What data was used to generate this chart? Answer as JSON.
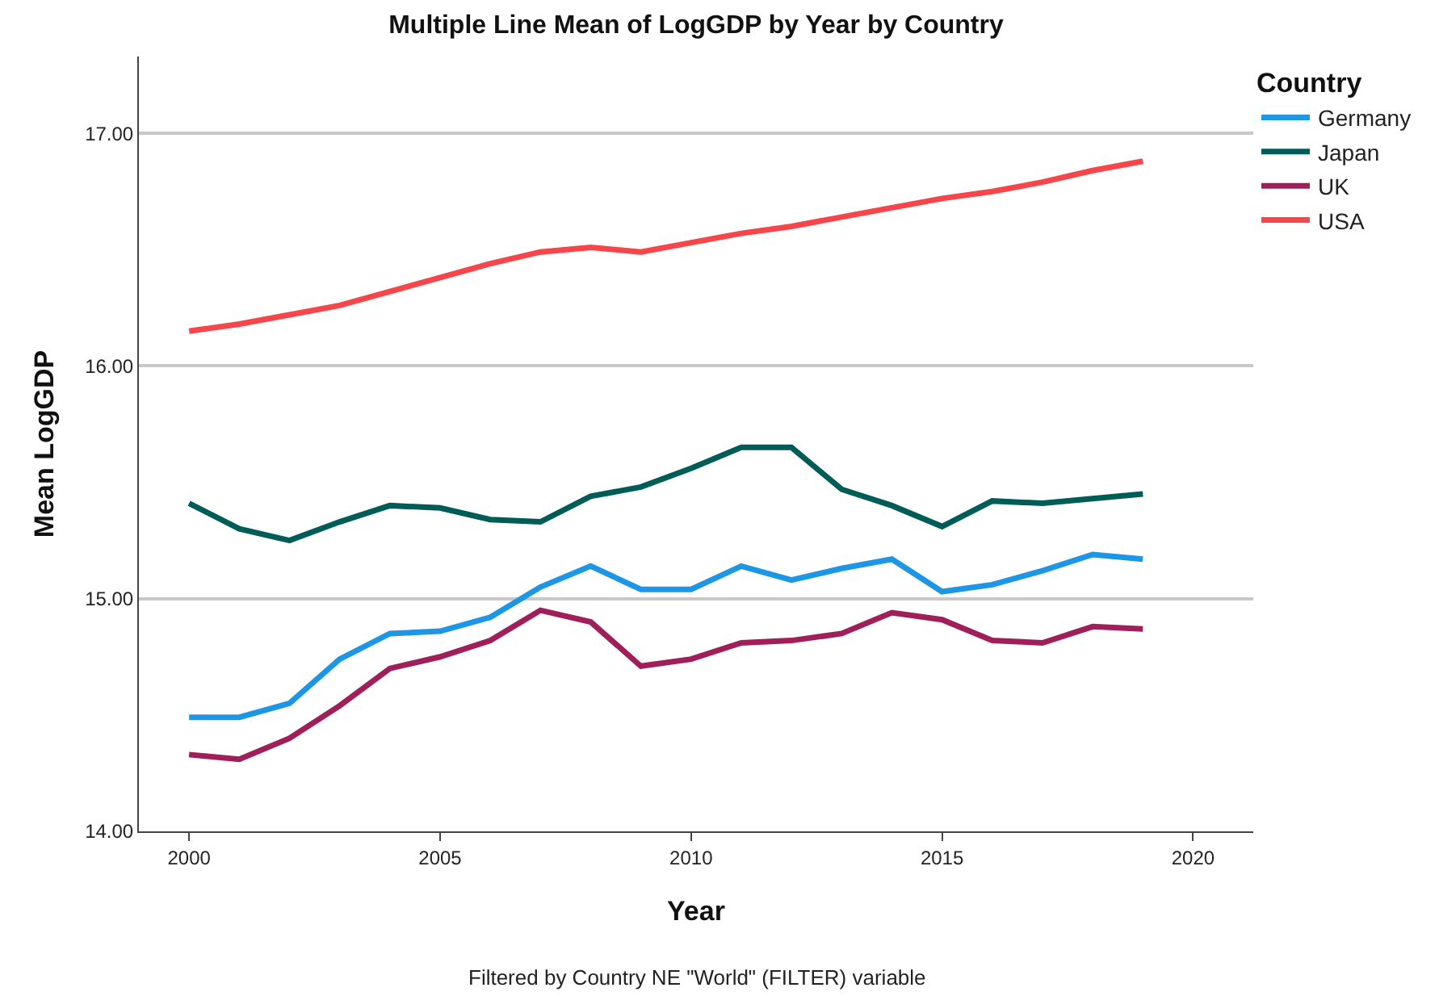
{
  "chart_data": {
    "type": "line",
    "title": "Multiple Line Mean of LogGDP by Year by Country",
    "xlabel": "Year",
    "ylabel": "Mean LogGDP",
    "legend_title": "Country",
    "annotations": [
      "Filtered by Country NE \"World\" (FILTER) variable"
    ],
    "x": [
      2000,
      2001,
      2002,
      2003,
      2004,
      2005,
      2006,
      2007,
      2008,
      2009,
      2010,
      2011,
      2012,
      2013,
      2014,
      2015,
      2016,
      2017,
      2018,
      2019
    ],
    "series": [
      {
        "name": "Germany",
        "color": "#1e96e6",
        "values": [
          14.49,
          14.49,
          14.55,
          14.74,
          14.85,
          14.86,
          14.92,
          15.05,
          15.14,
          15.04,
          15.04,
          15.14,
          15.08,
          15.13,
          15.17,
          15.03,
          15.06,
          15.12,
          15.19,
          15.17
        ]
      },
      {
        "name": "Japan",
        "color": "#005c57",
        "values": [
          15.41,
          15.3,
          15.25,
          15.33,
          15.4,
          15.39,
          15.34,
          15.33,
          15.44,
          15.48,
          15.56,
          15.65,
          15.65,
          15.47,
          15.4,
          15.31,
          15.42,
          15.41,
          15.43,
          15.45
        ]
      },
      {
        "name": "UK",
        "color": "#a01e5a",
        "values": [
          14.33,
          14.31,
          14.4,
          14.54,
          14.7,
          14.75,
          14.82,
          14.95,
          14.9,
          14.71,
          14.74,
          14.81,
          14.82,
          14.85,
          14.94,
          14.91,
          14.82,
          14.81,
          14.88,
          14.87
        ]
      },
      {
        "name": "USA",
        "color": "#f7464a",
        "values": [
          16.15,
          16.18,
          16.22,
          16.26,
          16.32,
          16.38,
          16.44,
          16.49,
          16.51,
          16.49,
          16.53,
          16.57,
          16.6,
          16.64,
          16.68,
          16.72,
          16.75,
          16.79,
          16.84,
          16.88
        ]
      }
    ],
    "xlim": [
      1999,
      2021.2
    ],
    "xticks": [
      2000,
      2005,
      2010,
      2015,
      2020
    ],
    "ylim": [
      14,
      17.33
    ],
    "yticks": [
      {
        "value": 14,
        "label": "14.00"
      },
      {
        "value": 15,
        "label": "15.00"
      },
      {
        "value": 16,
        "label": "16.00"
      },
      {
        "value": 17,
        "label": "17.00"
      }
    ],
    "grid": "y",
    "legend": "top right",
    "marker": "none",
    "line_style": "solid"
  }
}
